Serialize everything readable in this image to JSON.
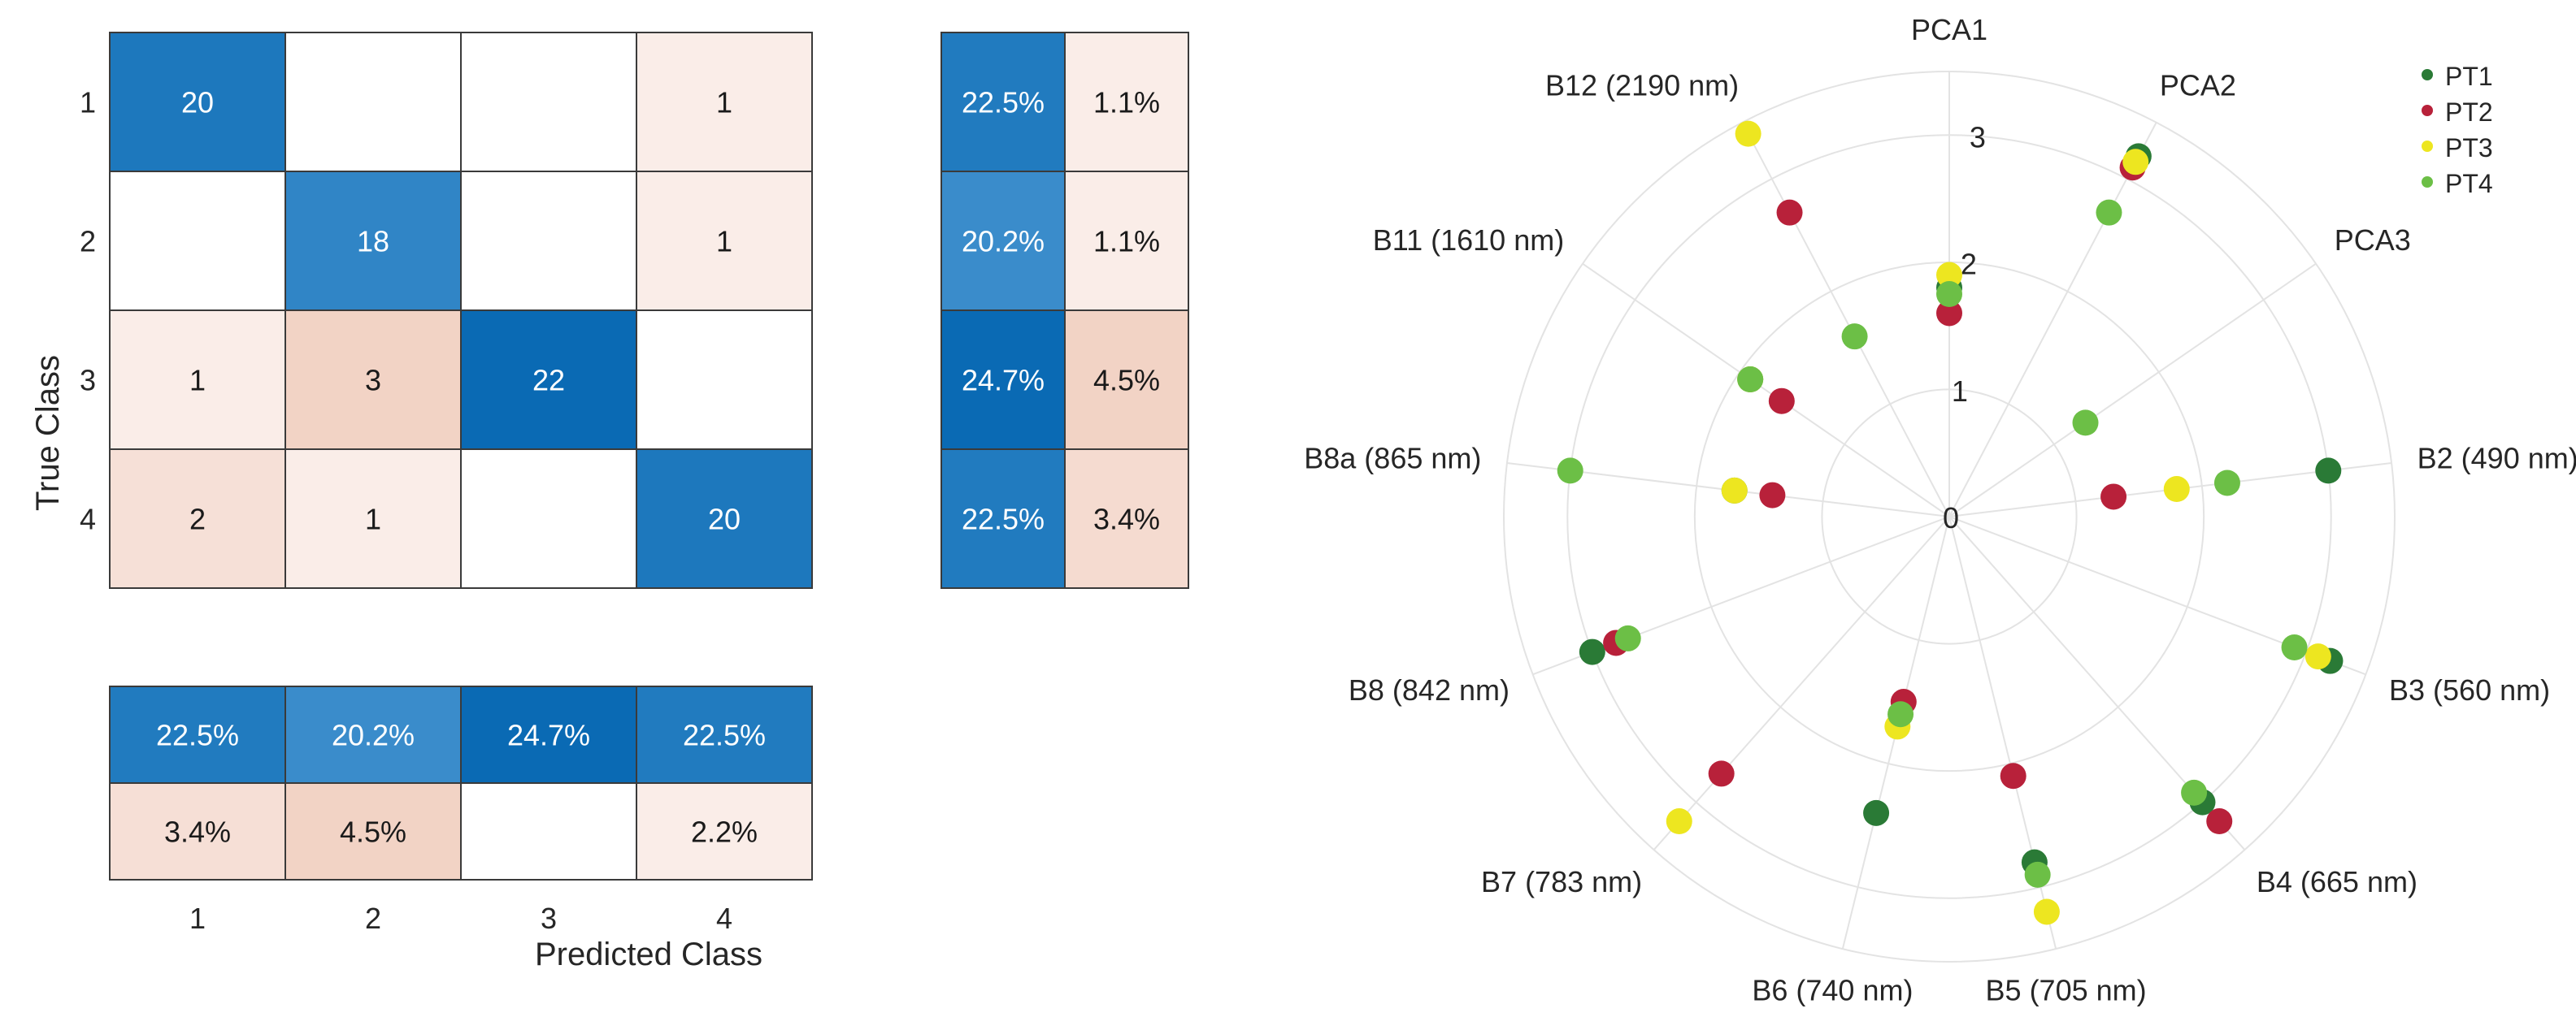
{
  "chart_data": [
    {
      "type": "heatmap",
      "title": "",
      "xlabel": "Predicted Class",
      "ylabel": "True Class",
      "classes": [
        "1",
        "2",
        "3",
        "4"
      ],
      "counts": [
        [
          20,
          null,
          null,
          1
        ],
        [
          null,
          18,
          null,
          1
        ],
        [
          1,
          3,
          22,
          null
        ],
        [
          2,
          1,
          null,
          20
        ]
      ],
      "row_summary": {
        "correct": [
          "22.5%",
          "20.2%",
          "24.7%",
          "22.5%"
        ],
        "incorrect": [
          "1.1%",
          "1.1%",
          "4.5%",
          "3.4%"
        ]
      },
      "column_summary": {
        "correct": [
          "22.5%",
          "20.2%",
          "24.7%",
          "22.5%"
        ],
        "incorrect": [
          "3.4%",
          "4.5%",
          null,
          "2.2%"
        ]
      },
      "colors": {
        "diag_dark": "#0a6ab4",
        "diag_light": "#3a8ccb",
        "offdiag_dark": "#f2d3c5",
        "offdiag_light": "#faede8",
        "grid": "#3a3a3a"
      }
    },
    {
      "type": "scatter",
      "subtype": "polar",
      "title": "",
      "r_ticks": [
        0,
        1,
        2,
        3
      ],
      "rlim": [
        0,
        3.5
      ],
      "angular_labels": [
        "PCA1",
        "PCA2",
        "PCA3",
        "B2 (490 nm)",
        "B3 (560 nm)",
        "B4 (665 nm)",
        "B5 (705 nm)",
        "B6 (740 nm)",
        "B7 (783 nm)",
        "B8 (842 nm)",
        "B8a (865 nm)",
        "B11 (1610 nm)",
        "B12 (2190 nm)"
      ],
      "legend_position": "top-right",
      "series": [
        {
          "name": "PT1",
          "color": "#2a7a36",
          "r": [
            1.8,
            3.2,
            null,
            3.0,
            3.2,
            3.0,
            2.8,
            2.4,
            null,
            3.0,
            1.7,
            1.9,
            null
          ]
        },
        {
          "name": "PT2",
          "color": "#b8213a",
          "r": [
            1.6,
            3.1,
            null,
            1.3,
            null,
            3.2,
            2.1,
            1.5,
            2.7,
            2.8,
            1.4,
            1.6,
            2.7
          ]
        },
        {
          "name": "PT3",
          "color": "#ede620",
          "r": [
            1.9,
            3.15,
            null,
            1.8,
            3.1,
            null,
            3.2,
            1.7,
            3.2,
            null,
            1.7,
            1.9,
            3.4
          ]
        },
        {
          "name": "PT4",
          "color": "#6cbf46",
          "r": [
            1.75,
            2.7,
            1.3,
            2.2,
            2.9,
            2.9,
            2.9,
            1.6,
            null,
            2.7,
            3.0,
            1.9,
            1.6
          ]
        }
      ],
      "points": [
        {
          "series": "PT1",
          "angle": "PCA1",
          "r": 1.8
        }
      ]
    }
  ]
}
